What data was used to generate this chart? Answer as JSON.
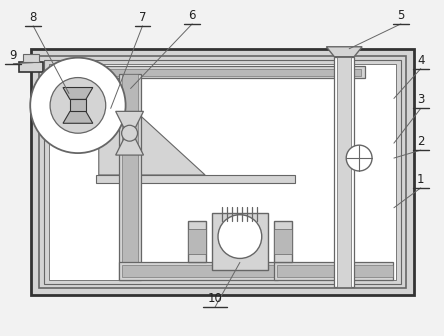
{
  "bg_color": "#f2f2f2",
  "lc": "#666666",
  "dc": "#333333",
  "lf": "#d4d4d4",
  "mf": "#b8b8b8",
  "wf": "#ffffff",
  "label_color": "#222222",
  "label_fontsize": 8.5,
  "figsize": [
    4.44,
    3.36
  ],
  "dpi": 100
}
